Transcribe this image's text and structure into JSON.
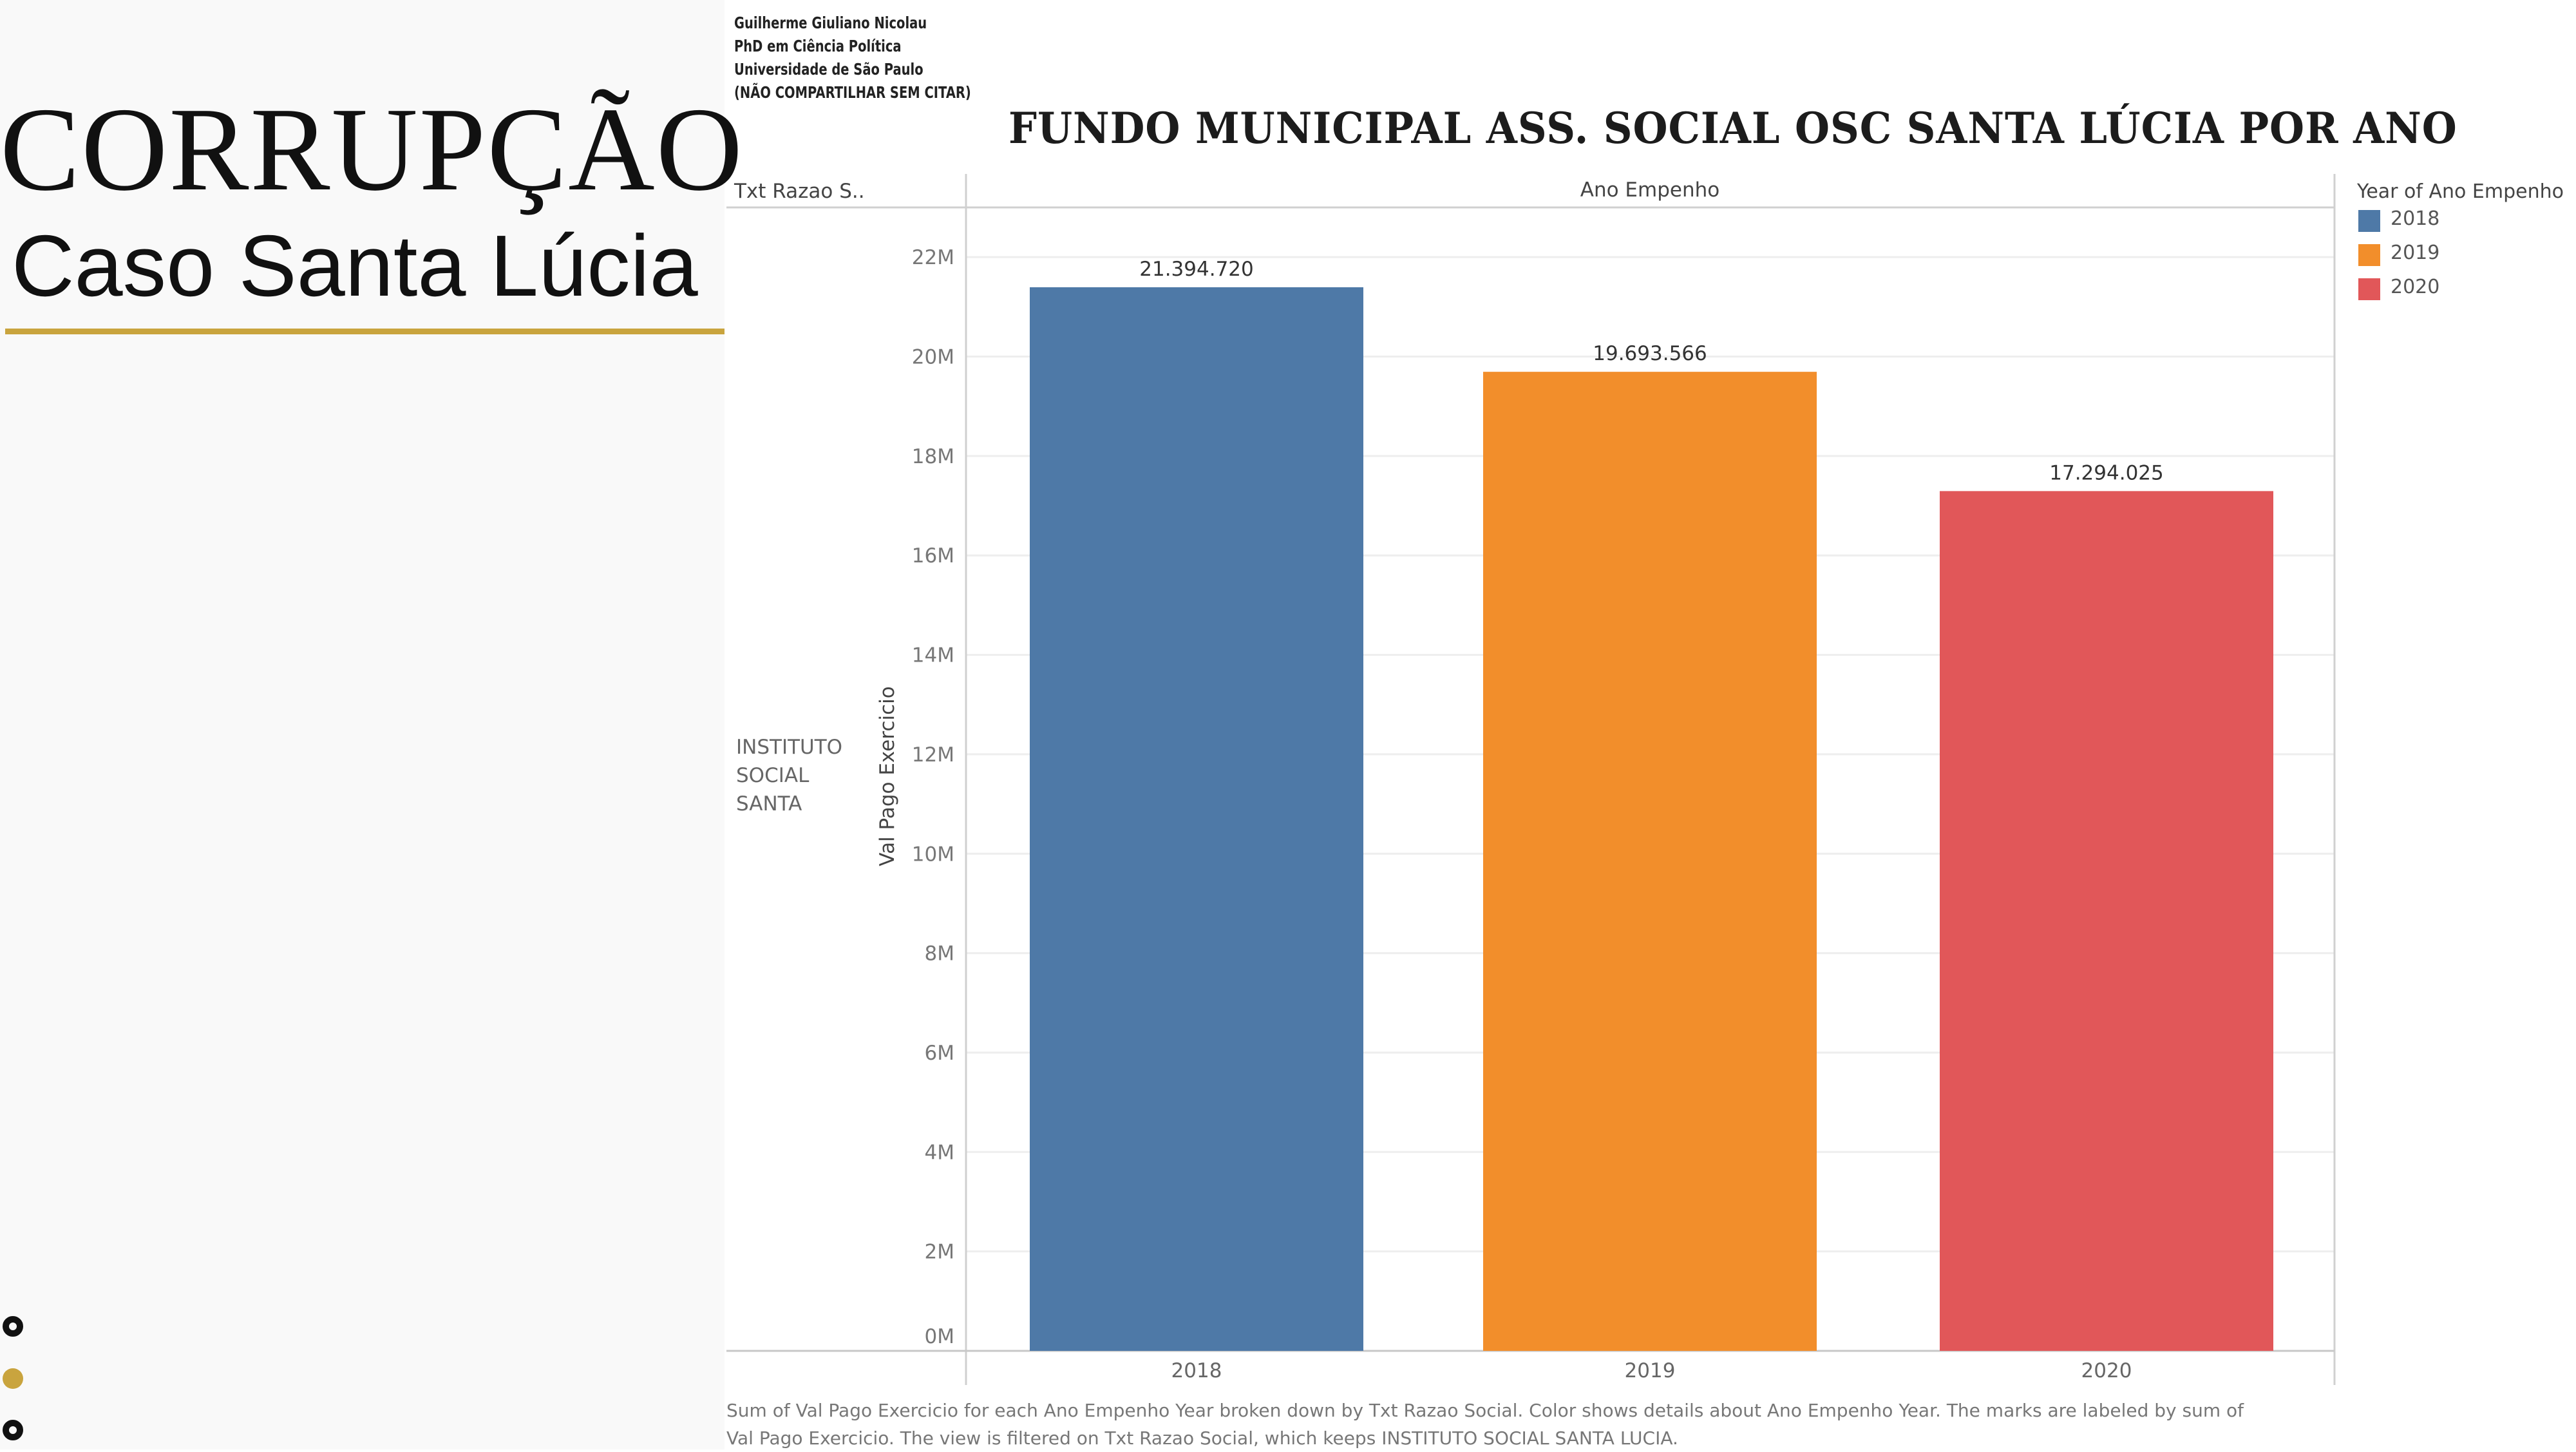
{
  "slide": {
    "title": "CORRUPÇÃO",
    "subtitle": "Caso Santa Lúcia",
    "accent_color": "#c9a43e"
  },
  "author": {
    "lines": [
      "Guilherme Giuliano Nicolau",
      "PhD em Ciência Política",
      "Universidade de São Paulo",
      "(NÃO COMPARTILHAR SEM CITAR)"
    ]
  },
  "chart_data": {
    "type": "bar",
    "title": "FUNDO MUNICIPAL ASS. SOCIAL  OSC SANTA LÚCIA  POR ANO",
    "row_header": "Txt Razao S..",
    "column_header": "Ano Empenho",
    "row_label": "INSTITUTO SOCIAL SANTA LUCIA",
    "categories": [
      "2018",
      "2019",
      "2020"
    ],
    "values": [
      21394720,
      19693566,
      17294025
    ],
    "data_labels": [
      "21.394.720",
      "19.693.566",
      "17.294.025"
    ],
    "colors": [
      "#4e79a7",
      "#f28e2b",
      "#e15759"
    ],
    "ylabel": "Val Pago Exercicio",
    "ylim": [
      0,
      23000000
    ],
    "yticks": [
      0,
      2000000,
      4000000,
      6000000,
      8000000,
      10000000,
      12000000,
      14000000,
      16000000,
      18000000,
      20000000,
      22000000
    ],
    "ytick_labels": [
      "0M",
      "2M",
      "4M",
      "6M",
      "8M",
      "10M",
      "12M",
      "14M",
      "16M",
      "18M",
      "20M",
      "22M"
    ],
    "grid": true,
    "legend": {
      "title": "Year of Ano Empenho",
      "position": "right",
      "entries": [
        "2018",
        "2019",
        "2020"
      ]
    }
  },
  "footnote": {
    "line1": "Sum of Val Pago Exercicio for each Ano Empenho Year broken down by Txt Razao Social.  Color shows details about Ano Empenho Year.  The marks are labeled by sum of",
    "line2": "Val Pago Exercicio. The view is filtered on Txt Razao Social, which keeps INSTITUTO SOCIAL SANTA LUCIA."
  }
}
